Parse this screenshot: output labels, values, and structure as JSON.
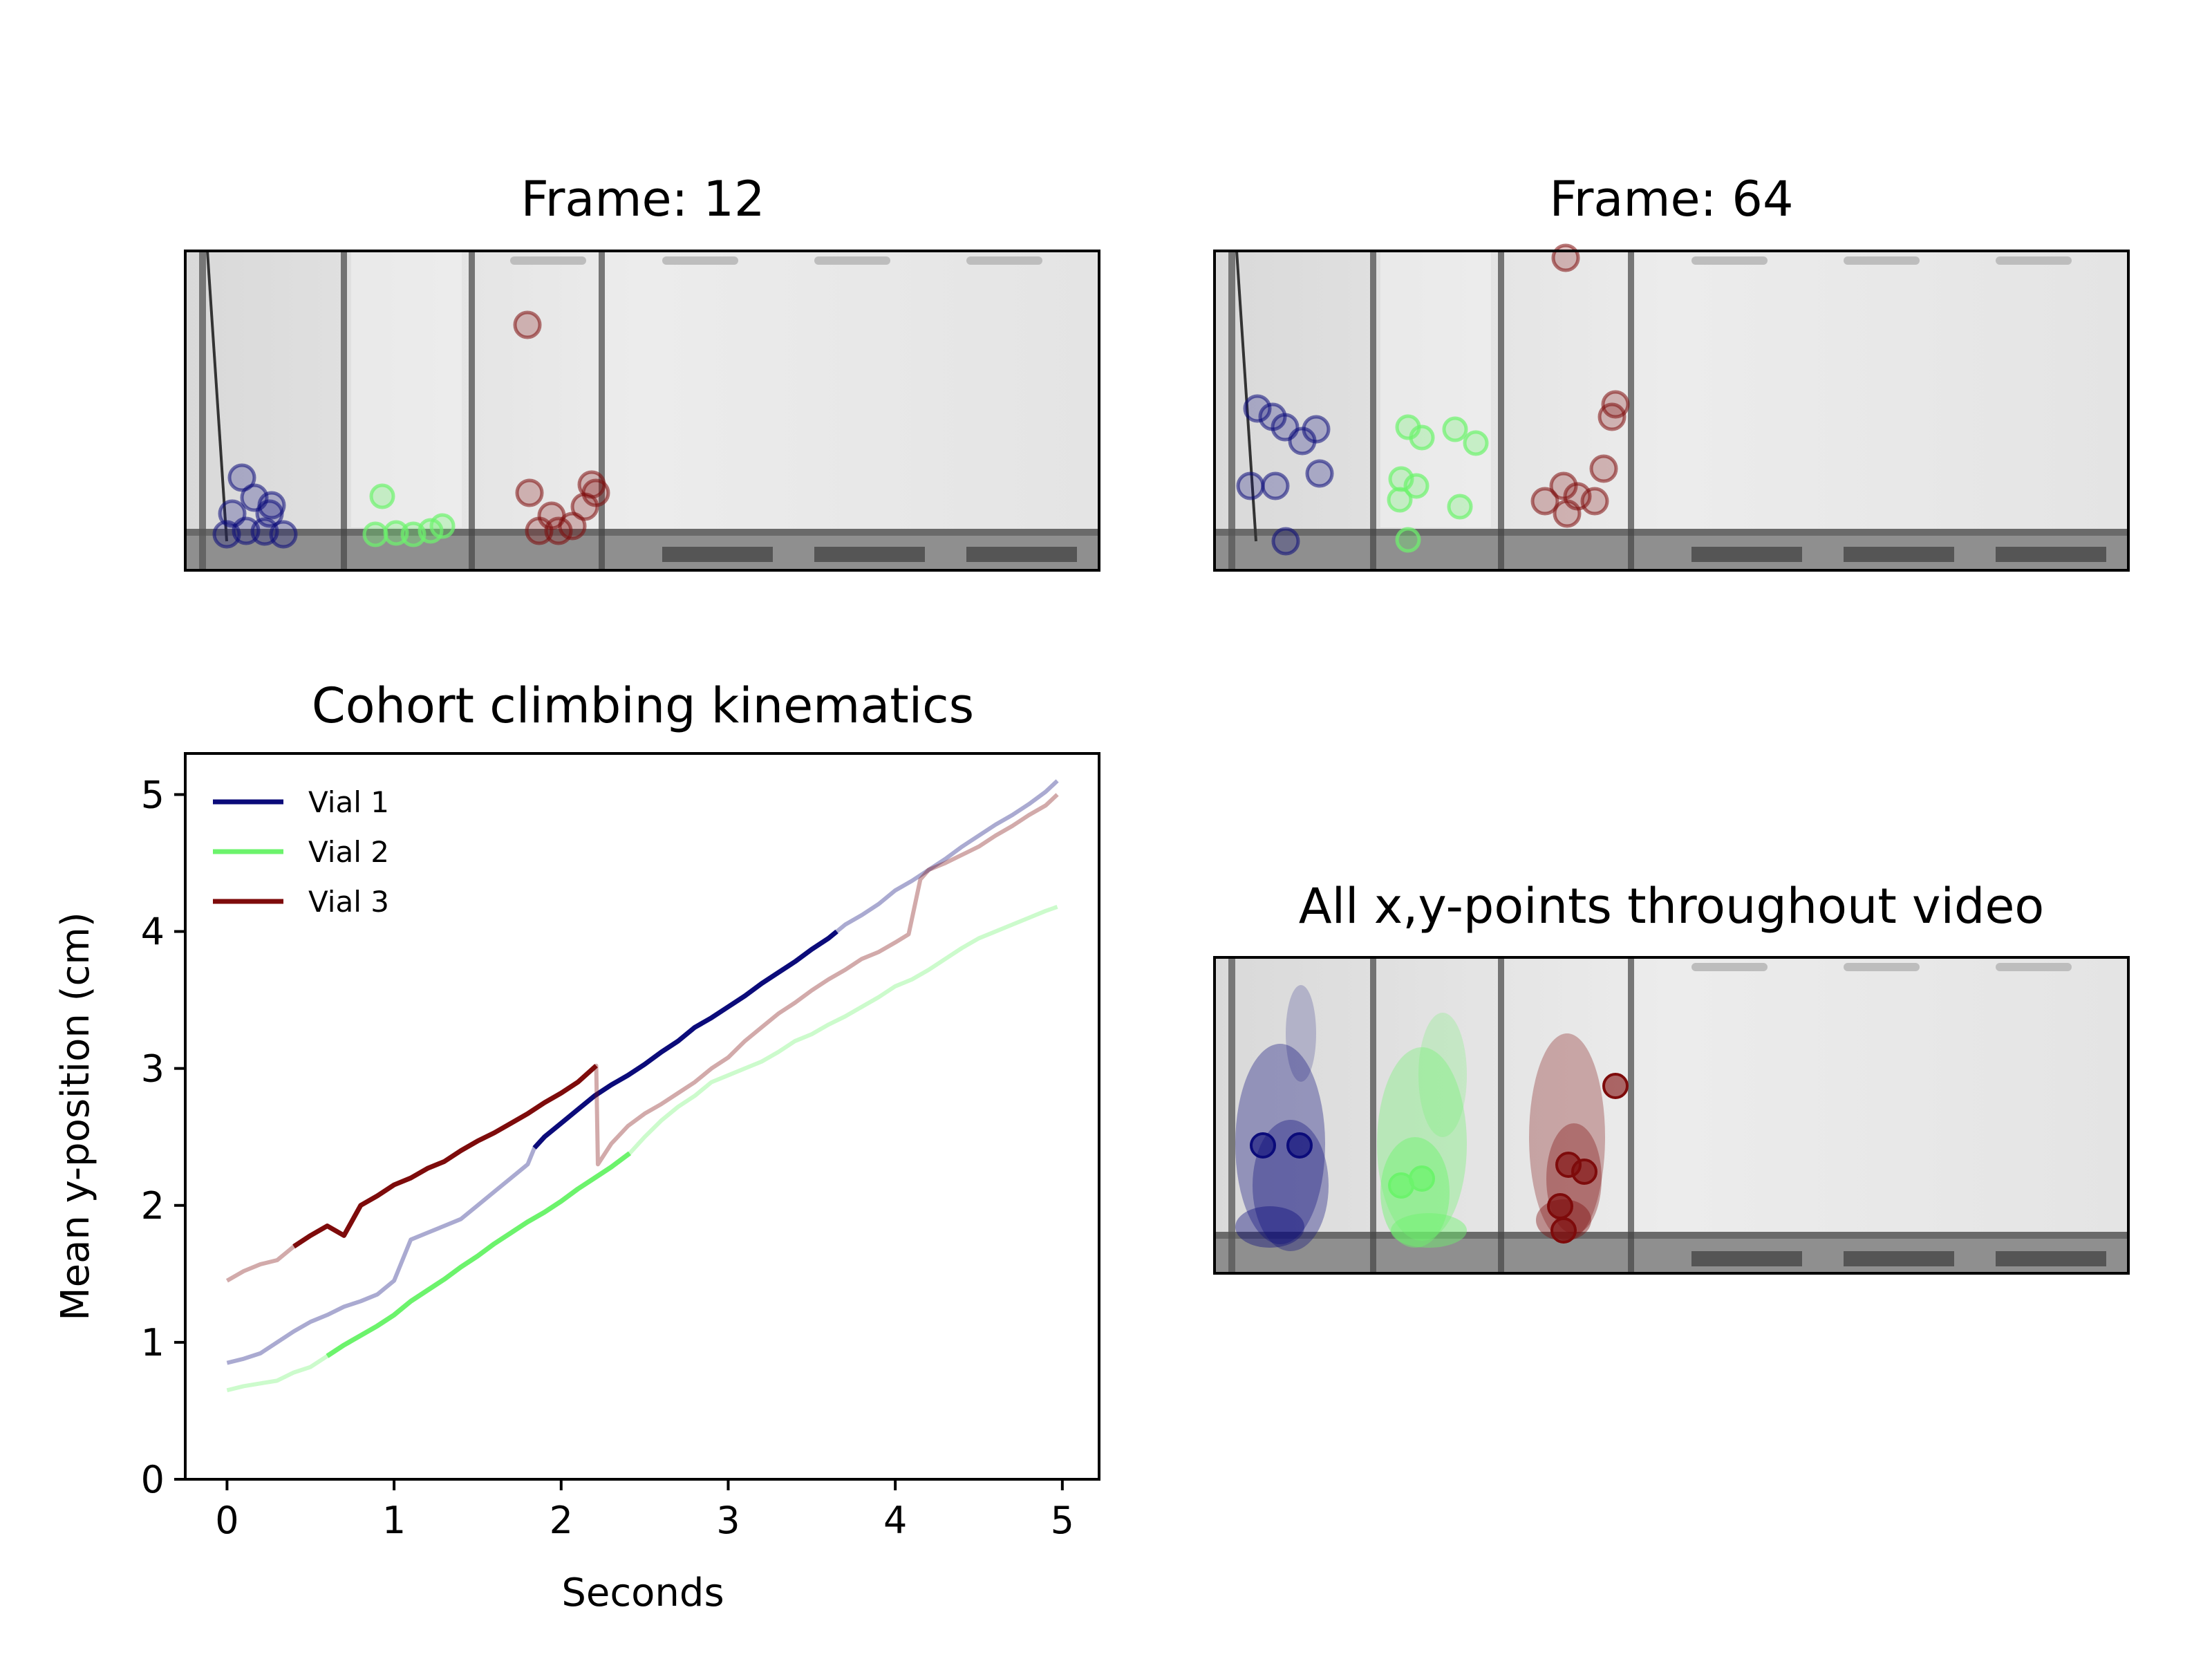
{
  "panels": {
    "frame12_title": "Frame: 12",
    "frame64_title": "Frame: 64",
    "allpoints_title": "All x,y-points throughout video"
  },
  "colors": {
    "vial1": "#0b0b7a",
    "vial2": "#6cf36c",
    "vial3": "#7e0b0b",
    "frame_bg": "#e9e9e9"
  },
  "chart_data": {
    "type": "line",
    "title": "Cohort climbing kinematics",
    "xlabel": "Seconds",
    "ylabel": "Mean y-position (cm)",
    "xlim": [
      -0.25,
      5.22
    ],
    "ylim": [
      0,
      5.3
    ],
    "xticks": [
      "0",
      "1",
      "2",
      "3",
      "4",
      "5"
    ],
    "yticks": [
      "0",
      "1",
      "2",
      "3",
      "4",
      "5"
    ],
    "legend_position": "top-left",
    "series": [
      {
        "name": "Vial 1",
        "color": "#0b0b7a",
        "x": [
          0,
          0.1,
          0.2,
          0.3,
          0.4,
          0.5,
          0.6,
          0.7,
          0.8,
          0.9,
          1.0,
          1.1,
          1.2,
          1.3,
          1.4,
          1.5,
          1.6,
          1.7,
          1.8,
          1.84,
          1.9,
          2.0,
          2.1,
          2.2,
          2.3,
          2.4,
          2.5,
          2.6,
          2.7,
          2.8,
          2.9,
          3.0,
          3.1,
          3.2,
          3.3,
          3.4,
          3.5,
          3.6,
          3.65,
          3.7,
          3.8,
          3.9,
          4.0,
          4.1,
          4.2,
          4.3,
          4.4,
          4.5,
          4.6,
          4.7,
          4.8,
          4.9,
          4.97
        ],
        "y": [
          0.85,
          0.88,
          0.92,
          1.0,
          1.08,
          1.15,
          1.2,
          1.26,
          1.3,
          1.35,
          1.45,
          1.75,
          1.8,
          1.85,
          1.9,
          2.0,
          2.1,
          2.2,
          2.3,
          2.42,
          2.5,
          2.6,
          2.7,
          2.8,
          2.88,
          2.95,
          3.03,
          3.12,
          3.2,
          3.3,
          3.37,
          3.45,
          3.53,
          3.62,
          3.7,
          3.78,
          3.87,
          3.95,
          4.0,
          4.05,
          4.12,
          4.2,
          4.3,
          4.37,
          4.45,
          4.53,
          4.62,
          4.7,
          4.78,
          4.85,
          4.93,
          5.02,
          5.1
        ],
        "highlight": [
          1.84,
          3.65
        ]
      },
      {
        "name": "Vial 2",
        "color": "#6cf36c",
        "x": [
          0,
          0.1,
          0.2,
          0.3,
          0.4,
          0.5,
          0.6,
          0.7,
          0.8,
          0.9,
          1.0,
          1.1,
          1.2,
          1.3,
          1.4,
          1.5,
          1.6,
          1.7,
          1.8,
          1.9,
          2.0,
          2.1,
          2.2,
          2.3,
          2.41,
          2.5,
          2.6,
          2.7,
          2.8,
          2.9,
          3.0,
          3.1,
          3.2,
          3.3,
          3.4,
          3.5,
          3.6,
          3.7,
          3.8,
          3.9,
          4.0,
          4.1,
          4.2,
          4.3,
          4.4,
          4.5,
          4.6,
          4.7,
          4.8,
          4.9,
          4.97
        ],
        "y": [
          0.65,
          0.68,
          0.7,
          0.72,
          0.78,
          0.82,
          0.9,
          0.98,
          1.05,
          1.12,
          1.2,
          1.3,
          1.38,
          1.46,
          1.55,
          1.63,
          1.72,
          1.8,
          1.88,
          1.95,
          2.03,
          2.12,
          2.2,
          2.28,
          2.38,
          2.5,
          2.62,
          2.72,
          2.8,
          2.9,
          2.95,
          3.0,
          3.05,
          3.12,
          3.2,
          3.25,
          3.32,
          3.38,
          3.45,
          3.52,
          3.6,
          3.65,
          3.72,
          3.8,
          3.88,
          3.95,
          4.0,
          4.05,
          4.1,
          4.15,
          4.18
        ],
        "highlight": [
          0.58,
          2.41
        ]
      },
      {
        "name": "Vial 3",
        "color": "#7e0b0b",
        "x": [
          0,
          0.1,
          0.2,
          0.3,
          0.4,
          0.5,
          0.6,
          0.7,
          0.8,
          0.9,
          1.0,
          1.1,
          1.2,
          1.3,
          1.4,
          1.5,
          1.6,
          1.7,
          1.8,
          1.9,
          2.0,
          2.1,
          2.21,
          2.22,
          2.3,
          2.4,
          2.5,
          2.6,
          2.7,
          2.8,
          2.9,
          3.0,
          3.1,
          3.2,
          3.3,
          3.4,
          3.5,
          3.6,
          3.7,
          3.8,
          3.9,
          4.0,
          4.08,
          4.15,
          4.2,
          4.3,
          4.4,
          4.5,
          4.6,
          4.7,
          4.8,
          4.9,
          4.97
        ],
        "y": [
          1.45,
          1.52,
          1.57,
          1.6,
          1.7,
          1.78,
          1.85,
          1.78,
          2.0,
          2.07,
          2.15,
          2.2,
          2.27,
          2.32,
          2.4,
          2.47,
          2.53,
          2.6,
          2.67,
          2.75,
          2.82,
          2.9,
          3.02,
          2.3,
          2.45,
          2.58,
          2.67,
          2.74,
          2.82,
          2.9,
          3.0,
          3.08,
          3.2,
          3.3,
          3.4,
          3.48,
          3.57,
          3.65,
          3.72,
          3.8,
          3.85,
          3.92,
          3.98,
          4.38,
          4.45,
          4.5,
          4.56,
          4.62,
          4.7,
          4.77,
          4.85,
          4.92,
          5.0
        ],
        "highlight": [
          0.4,
          2.21
        ]
      }
    ]
  }
}
